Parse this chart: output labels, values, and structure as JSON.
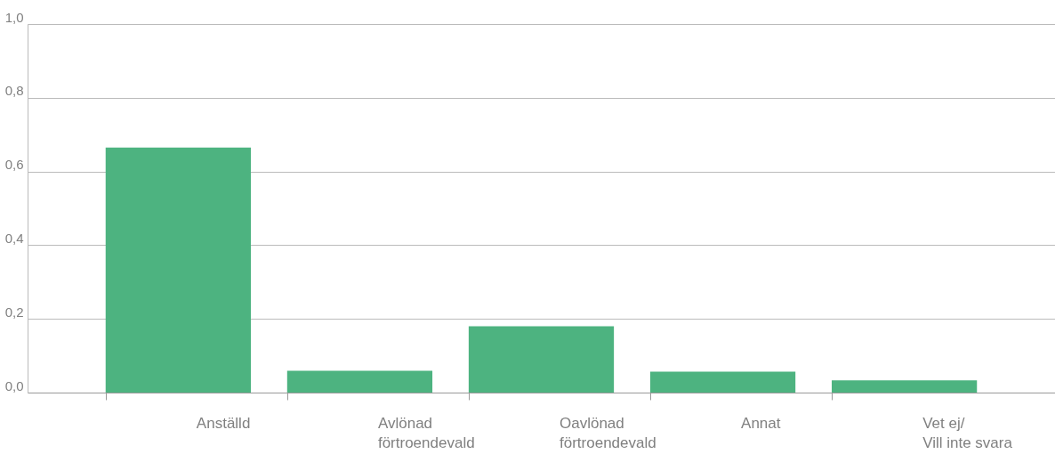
{
  "chart_data": {
    "type": "bar",
    "categories": [
      "Anställd",
      "Avlönad\nförtroendevald",
      "Oavlönad\nförtroendevald",
      "Annat",
      "Vet ej/\nVill inte svara"
    ],
    "values": [
      0.665,
      0.059,
      0.18,
      0.057,
      0.033
    ],
    "color": "#4db380",
    "ylim": [
      0,
      1
    ],
    "yticks": [
      {
        "value": 0,
        "label": "0,0"
      },
      {
        "value": 0.2,
        "label": "0,2"
      },
      {
        "value": 0.4,
        "label": "0,4"
      },
      {
        "value": 0.6,
        "label": "0,6"
      },
      {
        "value": 0.8,
        "label": "0,8"
      },
      {
        "value": 1,
        "label": "1,0"
      }
    ],
    "grid": "y"
  }
}
